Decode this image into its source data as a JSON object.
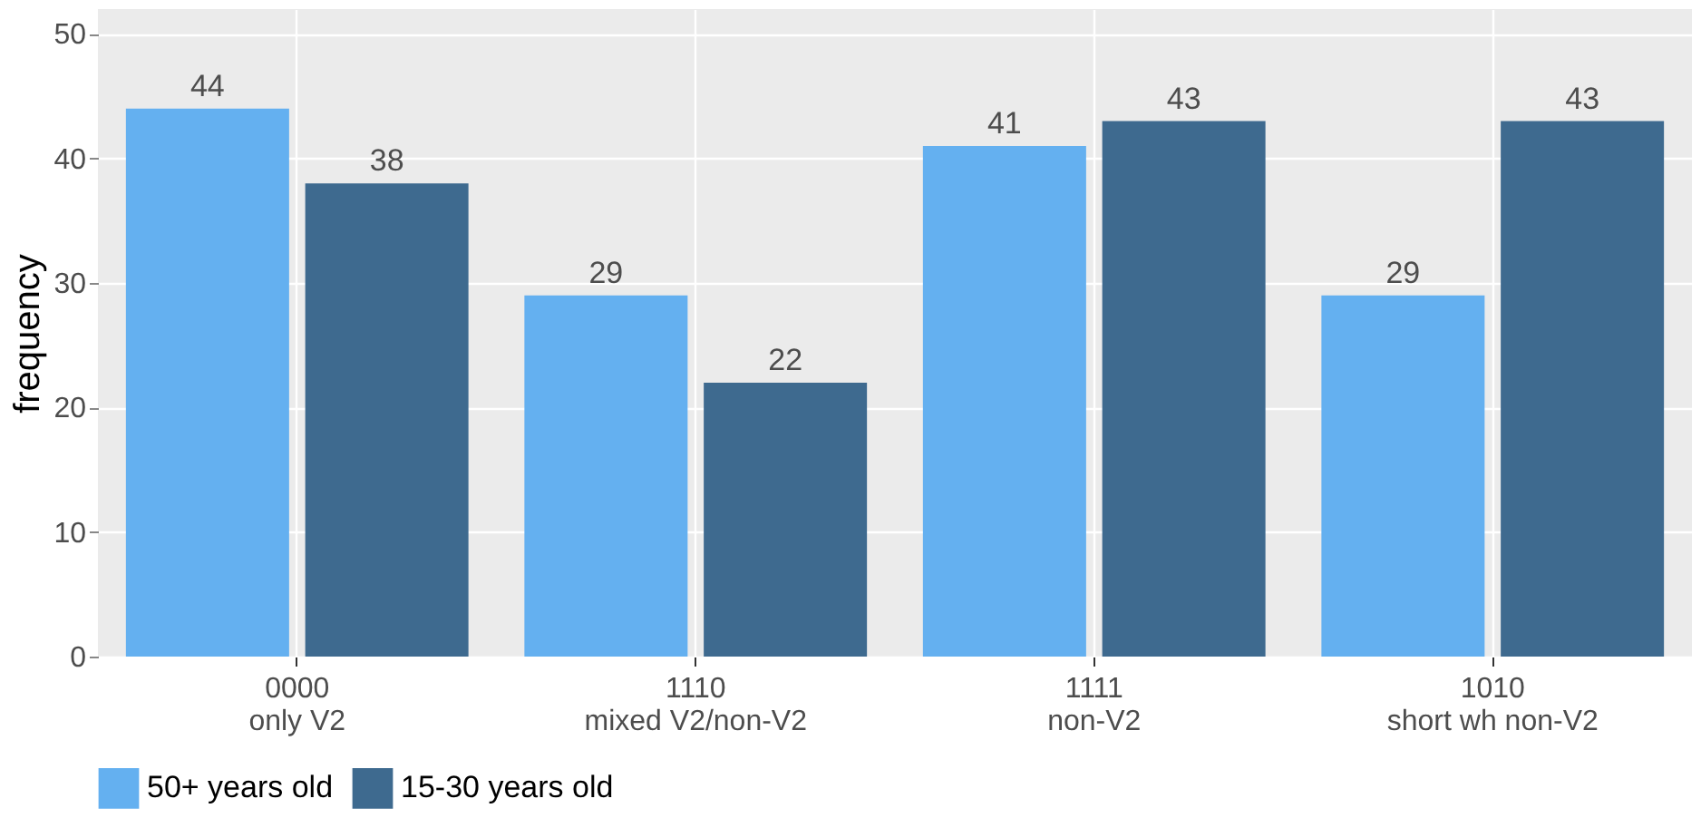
{
  "chart_data": {
    "type": "bar",
    "ylabel": "frequency",
    "categories": [
      "0000\nonly V2",
      "1110\nmixed V2/non-V2",
      "1111\nnon-V2",
      "1010\nshort wh non-V2"
    ],
    "series": [
      {
        "name": "50+ years old",
        "color": "#64b0f0",
        "values": [
          44,
          29,
          41,
          29
        ]
      },
      {
        "name": "15-30 years old",
        "color": "#3e6a8f",
        "values": [
          38,
          22,
          43,
          43
        ]
      }
    ],
    "ylim": [
      0,
      52
    ],
    "yticks": [
      0,
      10,
      20,
      30,
      40,
      50
    ],
    "grid": true,
    "legend": "bottom",
    "data_labels": true
  }
}
